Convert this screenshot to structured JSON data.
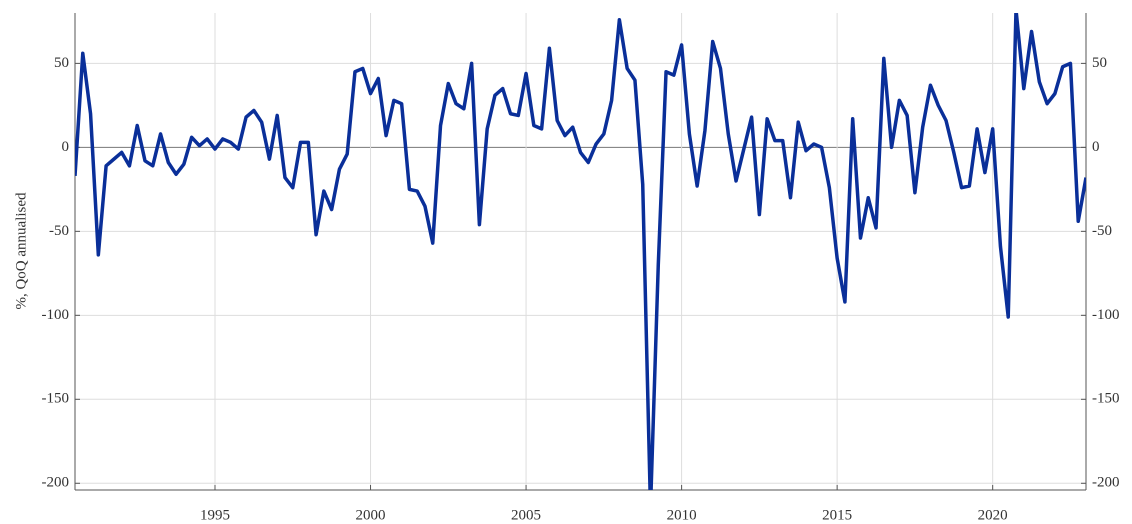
{
  "chart_data": {
    "type": "line",
    "y_label": "%, QoQ annualised",
    "x": [
      1990.5,
      1990.75,
      1991,
      1991.25,
      1991.5,
      1991.75,
      1992,
      1992.25,
      1992.5,
      1992.75,
      1993,
      1993.25,
      1993.5,
      1993.75,
      1994,
      1994.25,
      1994.5,
      1994.75,
      1995,
      1995.25,
      1995.5,
      1995.75,
      1996,
      1996.25,
      1996.5,
      1996.75,
      1997,
      1997.25,
      1997.5,
      1997.75,
      1998,
      1998.25,
      1998.5,
      1998.75,
      1999,
      1999.25,
      1999.5,
      1999.75,
      2000,
      2000.25,
      2000.5,
      2000.75,
      2001,
      2001.25,
      2001.5,
      2001.75,
      2002,
      2002.25,
      2002.5,
      2002.75,
      2003,
      2003.25,
      2003.5,
      2003.75,
      2004,
      2004.25,
      2004.5,
      2004.75,
      2005,
      2005.25,
      2005.5,
      2005.75,
      2006,
      2006.25,
      2006.5,
      2006.75,
      2007,
      2007.25,
      2007.5,
      2007.75,
      2008,
      2008.25,
      2008.5,
      2008.75,
      2009,
      2009.25,
      2009.5,
      2009.75,
      2010,
      2010.25,
      2010.5,
      2010.75,
      2011,
      2011.25,
      2011.5,
      2011.75,
      2012,
      2012.25,
      2012.5,
      2012.75,
      2013,
      2013.25,
      2013.5,
      2013.75,
      2014,
      2014.25,
      2014.5,
      2014.75,
      2015,
      2015.25,
      2015.5,
      2015.75,
      2016,
      2016.25,
      2016.5,
      2016.75,
      2017,
      2017.25,
      2017.5,
      2017.75,
      2018,
      2018.25,
      2018.5,
      2018.75,
      2019,
      2019.25,
      2019.5,
      2019.75,
      2020,
      2020.25,
      2020.5,
      2020.75,
      2021,
      2021.25,
      2021.5,
      2021.75,
      2022,
      2022.25,
      2022.5,
      2022.75,
      2023
    ],
    "series": [
      {
        "color": "#0a2f99",
        "values": [
          -17,
          56,
          20,
          -64,
          -11,
          -7,
          -3,
          -11,
          13,
          -8,
          -11,
          8,
          -9,
          -16,
          -10,
          6,
          1,
          5,
          -1,
          5,
          3,
          -1,
          18,
          22,
          15,
          -7,
          19,
          -18,
          -24,
          3,
          3,
          -52,
          -26,
          -37,
          -13,
          -4,
          45,
          47,
          32,
          41,
          7,
          28,
          26,
          -25,
          -26,
          -35,
          -57,
          13,
          38,
          26,
          23,
          50,
          -46,
          11,
          31,
          35,
          20,
          19,
          44,
          13,
          11,
          59,
          16,
          7,
          12,
          -3,
          -9,
          2,
          8,
          28,
          76,
          47,
          40,
          -22,
          -215,
          -70,
          45,
          43,
          61,
          8,
          -23,
          10,
          63,
          47,
          8,
          -20,
          -1,
          18,
          -40,
          17,
          4,
          4,
          -30,
          15,
          -2,
          2,
          0,
          -24,
          -66,
          -92,
          17,
          -54,
          -30,
          -48,
          53,
          0,
          28,
          19,
          -27,
          12,
          37,
          25,
          16,
          -3,
          -24,
          -23,
          11,
          -15,
          11,
          -59,
          -101,
          82,
          35,
          69,
          39,
          26,
          32,
          48,
          50,
          -44,
          -18
        ]
      }
    ],
    "xlim": [
      1990.5,
      2023
    ],
    "xticks": [
      1995,
      2000,
      2005,
      2010,
      2015,
      2020
    ],
    "ylim": [
      -204,
      80
    ],
    "yticks": [
      -200,
      -150,
      -100,
      -50,
      0,
      50
    ],
    "grid": true
  }
}
